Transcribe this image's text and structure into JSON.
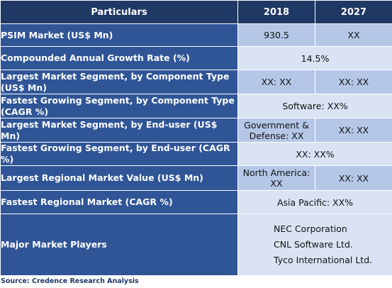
{
  "header": {
    "particulars": "Particulars",
    "year1": "2018",
    "year2": "2027"
  },
  "rows": [
    {
      "label": "PSIM Market (US$ Mn)",
      "v2018": "930.5",
      "v2027": "XX"
    },
    {
      "label": "Compounded Annual Growth Rate (%)",
      "value": "14.5%"
    },
    {
      "label": "Largest Market Segment, by Component Type (US$ Mn)",
      "v2018": "XX: XX",
      "v2027": "XX: XX"
    },
    {
      "label": "Fastest Growing Segment, by Component Type (CAGR %)",
      "value": "Software: XX%"
    },
    {
      "label": "Largest Market Segment, by End-user (US$ Mn)",
      "v2018": "Government & Defense: XX",
      "v2027": "XX: XX"
    },
    {
      "label": "Fastest Growing Segment, by End-user (CAGR %)",
      "value": "XX: XX%"
    },
    {
      "label": "Largest Regional Market Value (US$ Mn)",
      "v2018": "North America: XX",
      "v2027": "XX: XX"
    },
    {
      "label": "Fastest Regional Market (CAGR %)",
      "value": "Asia Pacific: XX%"
    },
    {
      "label": "Major Market Players",
      "players": [
        "NEC Corporation",
        "CNL Software Ltd.",
        "Tyco International Ltd."
      ]
    }
  ],
  "source": "Source: Credence Research Analysis",
  "colors": {
    "header_bg": "#1f3864",
    "label_bg": "#2f5597",
    "value_dark": "#b4c7e7",
    "value_light": "#dae3f3"
  }
}
